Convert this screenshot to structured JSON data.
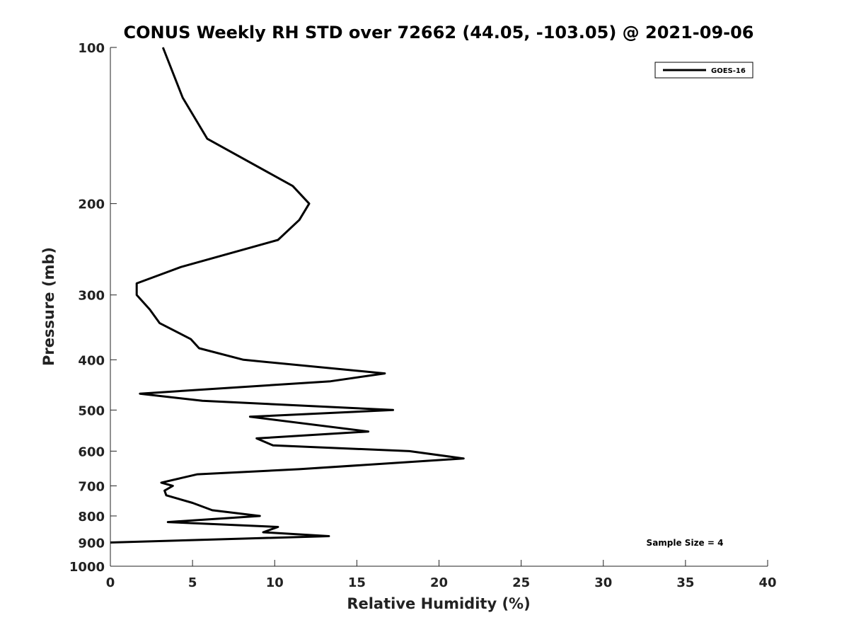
{
  "chart_data": {
    "type": "line",
    "title": "CONUS Weekly RH STD over 72662 (44.05, -103.05) @ 2021-09-06",
    "xlabel": "Relative Humidity (%)",
    "ylabel": "Pressure (mb)",
    "xlim": [
      0,
      40
    ],
    "ylim": [
      1000,
      100
    ],
    "yscale": "log",
    "y_reversed": true,
    "grid": false,
    "legend_placement": "top-right",
    "xticks": [
      0,
      5,
      10,
      15,
      20,
      25,
      30,
      35,
      40
    ],
    "xtick_labels": [
      "0",
      "5",
      "10",
      "15",
      "20",
      "25",
      "30",
      "35",
      "40"
    ],
    "yticks": [
      100,
      200,
      300,
      400,
      500,
      600,
      700,
      800,
      900,
      1000
    ],
    "ytick_labels": [
      "100",
      "200",
      "300",
      "400",
      "500",
      "600",
      "700",
      "800",
      "900",
      "1000"
    ],
    "series": [
      {
        "name": "GOES-16",
        "color": "#000000",
        "points": [
          {
            "x": 3.2,
            "p": 100
          },
          {
            "x": 4.4,
            "p": 125
          },
          {
            "x": 5.9,
            "p": 150
          },
          {
            "x": 11.1,
            "p": 185
          },
          {
            "x": 12.1,
            "p": 200
          },
          {
            "x": 11.5,
            "p": 215
          },
          {
            "x": 10.2,
            "p": 235
          },
          {
            "x": 4.3,
            "p": 265
          },
          {
            "x": 1.6,
            "p": 285
          },
          {
            "x": 1.6,
            "p": 300
          },
          {
            "x": 2.4,
            "p": 320
          },
          {
            "x": 3.0,
            "p": 340
          },
          {
            "x": 4.9,
            "p": 365
          },
          {
            "x": 5.4,
            "p": 380
          },
          {
            "x": 8.1,
            "p": 400
          },
          {
            "x": 16.7,
            "p": 425
          },
          {
            "x": 13.4,
            "p": 440
          },
          {
            "x": 1.8,
            "p": 465
          },
          {
            "x": 5.6,
            "p": 480
          },
          {
            "x": 17.2,
            "p": 500
          },
          {
            "x": 8.5,
            "p": 515
          },
          {
            "x": 15.7,
            "p": 550
          },
          {
            "x": 8.9,
            "p": 567
          },
          {
            "x": 9.9,
            "p": 585
          },
          {
            "x": 18.2,
            "p": 600
          },
          {
            "x": 21.5,
            "p": 620
          },
          {
            "x": 11.5,
            "p": 650
          },
          {
            "x": 5.3,
            "p": 665
          },
          {
            "x": 3.1,
            "p": 690
          },
          {
            "x": 3.8,
            "p": 700
          },
          {
            "x": 3.3,
            "p": 715
          },
          {
            "x": 3.4,
            "p": 730
          },
          {
            "x": 5.0,
            "p": 755
          },
          {
            "x": 6.2,
            "p": 780
          },
          {
            "x": 9.1,
            "p": 800
          },
          {
            "x": 3.5,
            "p": 822
          },
          {
            "x": 10.2,
            "p": 840
          },
          {
            "x": 9.3,
            "p": 860
          },
          {
            "x": 13.3,
            "p": 875
          },
          {
            "x": 0,
            "p": 900
          }
        ]
      }
    ],
    "annotations": [
      {
        "text": "Sample Size = 4"
      }
    ]
  }
}
